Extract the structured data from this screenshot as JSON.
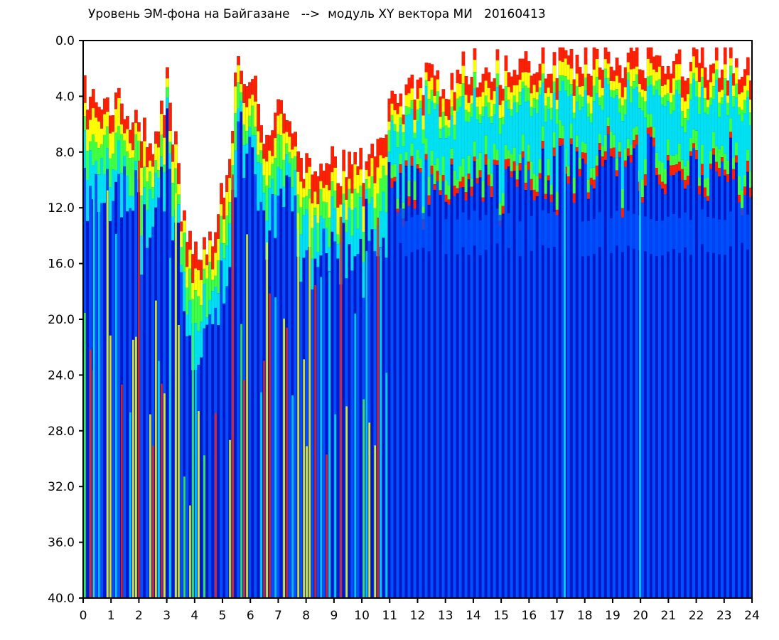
{
  "chart_data": {
    "type": "heatmap",
    "title": "Уровень ЭМ-фона на Байгазане   -->  модуль XY вектора МИ   20160413",
    "xlabel": "",
    "ylabel": "",
    "xlim": [
      0,
      24
    ],
    "ylim": [
      0,
      40
    ],
    "y_inverted": true,
    "grid": false,
    "x_ticks": [
      "0",
      "1",
      "2",
      "3",
      "4",
      "5",
      "6",
      "7",
      "8",
      "9",
      "10",
      "11",
      "12",
      "13",
      "14",
      "15",
      "16",
      "17",
      "18",
      "19",
      "20",
      "21",
      "22",
      "23",
      "24"
    ],
    "y_ticks": [
      "0.0",
      "4.0",
      "8.0",
      "12.0",
      "16.0",
      "20.0",
      "24.0",
      "28.0",
      "32.0",
      "36.0",
      "40.0"
    ],
    "colors": {
      "background": "#ffffff",
      "low": "#0018c8",
      "mid_low": "#0050ff",
      "mid": "#00e0f0",
      "mid_high": "#40ff40",
      "high": "#ffff00",
      "peak": "#ff2000"
    },
    "signal_top_hours": [
      0,
      0.5,
      1,
      1.5,
      2,
      2.5,
      3,
      3.5,
      4,
      4.5,
      5,
      5.5,
      6,
      6.5,
      7,
      7.5,
      8,
      8.5,
      9,
      9.5,
      10,
      10.5,
      11,
      11.5,
      12,
      12.5,
      13,
      13.5,
      14,
      14.5,
      15,
      15.5,
      16,
      16.5,
      17,
      17.5,
      18,
      18.5,
      19,
      19.5,
      20,
      20.5,
      21,
      21.5,
      22,
      22.5,
      23,
      23.5,
      24
    ],
    "signal_top_values": [
      4,
      5,
      4,
      5,
      6,
      7,
      3,
      12,
      15,
      14,
      11,
      2,
      3,
      7,
      4,
      7,
      9,
      9,
      9,
      9,
      9,
      8,
      4,
      4,
      3,
      3,
      3,
      2,
      2,
      2,
      2,
      1.5,
      1.5,
      1.5,
      1.5,
      1.5,
      1.5,
      1.5,
      1.5,
      1.5,
      1.5,
      1.5,
      1.5,
      1.5,
      1.5,
      1.5,
      1.5,
      1.5,
      2
    ]
  }
}
